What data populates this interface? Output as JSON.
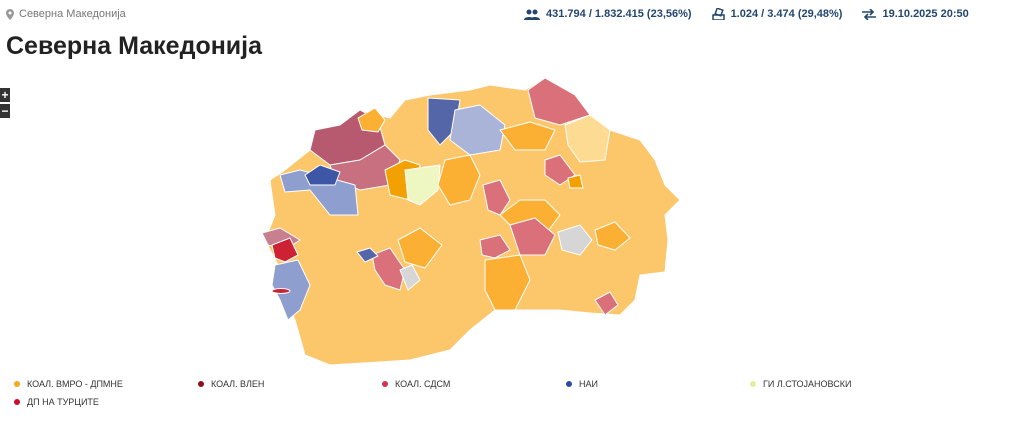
{
  "breadcrumb": "Северна Македонија",
  "stats": {
    "votes": "431.794 / 1.832.415 (23,56%)",
    "stations": "1.024 / 3.474 (29,48%)",
    "updated": "19.10.2025 20:50"
  },
  "title": "Северна Македонија",
  "zoom": {
    "in": "+",
    "out": "−"
  },
  "legend": [
    {
      "name": "КОАЛ. ВМРО - ДПМНЕ",
      "color": "#f6a623"
    },
    {
      "name": "КОАЛ. ВЛЕН",
      "color": "#8b1020"
    },
    {
      "name": "КОАЛ. СДСМ",
      "color": "#d0354a"
    },
    {
      "name": "НАИ",
      "color": "#2f4aa0"
    },
    {
      "name": "ГИ Л.СТОЈАНОВСКИ",
      "color": "#e3ee9a"
    },
    {
      "name": "ДП НА ТУРЦИТЕ",
      "color": "#c8102e"
    }
  ]
}
